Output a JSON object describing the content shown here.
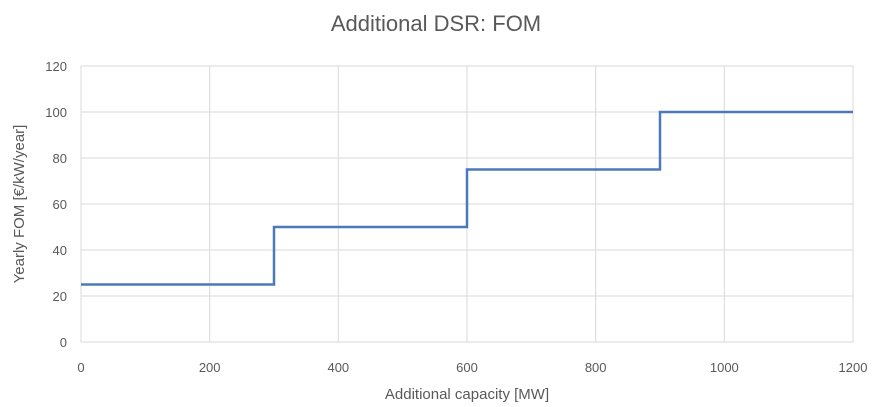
{
  "chart_data": {
    "type": "line",
    "title": "Additional DSR: FOM",
    "xlabel": "Additional capacity [MW]",
    "ylabel": "Yearly FOM [€/kW/year]",
    "xlim": [
      0,
      1200
    ],
    "ylim": [
      0,
      120
    ],
    "x_ticks": [
      0,
      200,
      400,
      600,
      800,
      1000,
      1200
    ],
    "y_ticks": [
      0,
      20,
      40,
      60,
      80,
      100,
      120
    ],
    "grid": true,
    "legend": "none",
    "series": [
      {
        "color": "#4a7ab8",
        "step": true,
        "points": [
          [
            0,
            25
          ],
          [
            300,
            25
          ],
          [
            300,
            50
          ],
          [
            600,
            50
          ],
          [
            600,
            75
          ],
          [
            900,
            75
          ],
          [
            900,
            100
          ],
          [
            1200,
            100
          ]
        ]
      }
    ]
  }
}
